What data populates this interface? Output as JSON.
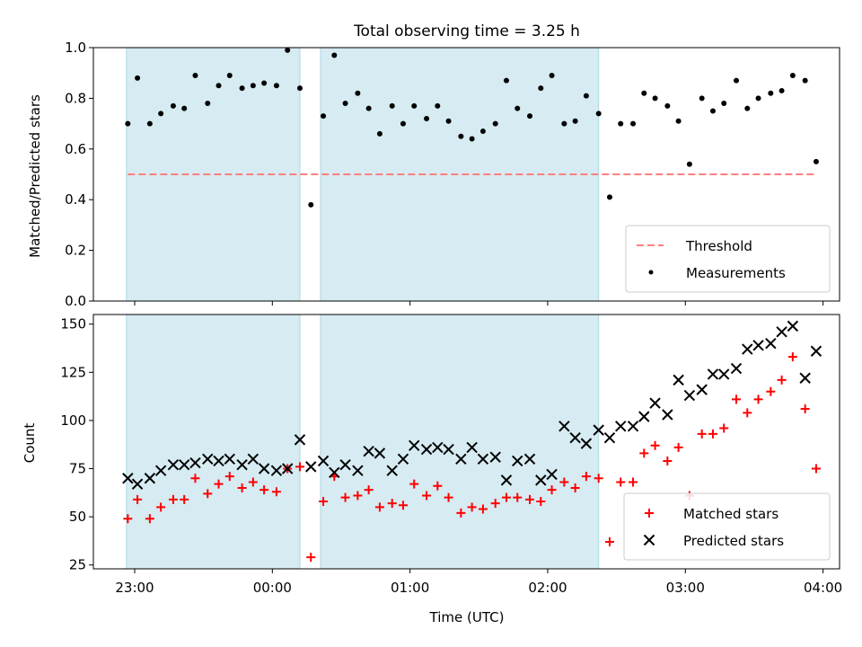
{
  "title": "Total observing time = 3.25 h",
  "xlabel": "Time (UTC)",
  "x_tick_labels": [
    "23:00",
    "00:00",
    "01:00",
    "02:00",
    "03:00",
    "04:00"
  ],
  "colors": {
    "shade": "#add8e6",
    "threshold": "#ff7f7f",
    "measurement": "#000000",
    "matched": "#ff0000",
    "predicted": "#000000"
  },
  "chart_data": [
    {
      "type": "scatter",
      "ylabel": "Matched/Predicted stars",
      "ylim": [
        0,
        1.0
      ],
      "y_ticks": [
        "0.0",
        "0.2",
        "0.4",
        "0.6",
        "0.8",
        "1.0"
      ],
      "x_range_hours": [
        -1.3,
        4.12
      ],
      "x_ticks_hours": [
        -1,
        0,
        1,
        2,
        3,
        4
      ],
      "shaded_intervals": [
        [
          -1.06,
          0.2
        ],
        [
          0.35,
          2.37
        ]
      ],
      "threshold": 0.5,
      "legend": {
        "position": "lower right",
        "entries": [
          "Threshold",
          "Measurements"
        ]
      },
      "series": [
        {
          "name": "Measurements",
          "marker": "dot",
          "x": [
            -1.05,
            -0.98,
            -0.89,
            -0.81,
            -0.72,
            -0.64,
            -0.56,
            -0.47,
            -0.39,
            -0.31,
            -0.22,
            -0.14,
            -0.06,
            0.03,
            0.11,
            0.2,
            0.28,
            0.37,
            0.45,
            0.53,
            0.62,
            0.7,
            0.78,
            0.87,
            0.95,
            1.03,
            1.12,
            1.2,
            1.28,
            1.37,
            1.45,
            1.53,
            1.62,
            1.7,
            1.78,
            1.87,
            1.95,
            2.03,
            2.12,
            2.2,
            2.28,
            2.37,
            2.45,
            2.53,
            2.62,
            2.7,
            2.78,
            2.87,
            2.95,
            3.03,
            3.12,
            3.2,
            3.28,
            3.37,
            3.45,
            3.53,
            3.62,
            3.7,
            3.78,
            3.87,
            3.95
          ],
          "y": [
            0.7,
            0.88,
            0.7,
            0.74,
            0.77,
            0.76,
            0.89,
            0.78,
            0.85,
            0.89,
            0.84,
            0.85,
            0.86,
            0.85,
            0.99,
            0.84,
            0.38,
            0.73,
            0.97,
            0.78,
            0.82,
            0.76,
            0.66,
            0.77,
            0.7,
            0.77,
            0.72,
            0.77,
            0.71,
            0.65,
            0.64,
            0.67,
            0.7,
            0.87,
            0.76,
            0.73,
            0.84,
            0.89,
            0.7,
            0.71,
            0.81,
            0.74,
            0.41,
            0.7,
            0.7,
            0.82,
            0.8,
            0.77,
            0.71,
            0.54,
            0.8,
            0.75,
            0.78,
            0.87,
            0.76,
            0.8,
            0.82,
            0.83,
            0.89,
            0.87,
            0.55
          ]
        }
      ]
    },
    {
      "type": "scatter",
      "ylabel": "Count",
      "ylim": [
        23,
        155
      ],
      "y_ticks": [
        "25",
        "50",
        "75",
        "100",
        "125",
        "150"
      ],
      "x_range_hours": [
        -1.3,
        4.12
      ],
      "x_ticks_hours": [
        -1,
        0,
        1,
        2,
        3,
        4
      ],
      "shaded_intervals": [
        [
          -1.06,
          0.2
        ],
        [
          0.35,
          2.37
        ]
      ],
      "legend": {
        "position": "lower right",
        "entries": [
          "Matched stars",
          "Predicted stars"
        ]
      },
      "series": [
        {
          "name": "Matched stars",
          "marker": "plus",
          "x": [
            -1.05,
            -0.98,
            -0.89,
            -0.81,
            -0.72,
            -0.64,
            -0.56,
            -0.47,
            -0.39,
            -0.31,
            -0.22,
            -0.14,
            -0.06,
            0.03,
            0.11,
            0.2,
            0.28,
            0.37,
            0.45,
            0.53,
            0.62,
            0.7,
            0.78,
            0.87,
            0.95,
            1.03,
            1.12,
            1.2,
            1.28,
            1.37,
            1.45,
            1.53,
            1.62,
            1.7,
            1.78,
            1.87,
            1.95,
            2.03,
            2.12,
            2.2,
            2.28,
            2.37,
            2.45,
            2.53,
            2.62,
            2.7,
            2.78,
            2.87,
            2.95,
            3.03,
            3.12,
            3.2,
            3.28,
            3.37,
            3.45,
            3.53,
            3.62,
            3.7,
            3.78,
            3.87,
            3.95
          ],
          "y": [
            49,
            59,
            49,
            55,
            59,
            59,
            70,
            62,
            67,
            71,
            65,
            68,
            64,
            63,
            75,
            76,
            29,
            58,
            71,
            60,
            61,
            64,
            55,
            57,
            56,
            67,
            61,
            66,
            60,
            52,
            55,
            54,
            57,
            60,
            60,
            59,
            58,
            64,
            68,
            65,
            71,
            70,
            37,
            68,
            68,
            83,
            87,
            79,
            86,
            61,
            93,
            93,
            96,
            111,
            104,
            111,
            115,
            121,
            133,
            106,
            75
          ]
        },
        {
          "name": "Predicted stars",
          "marker": "x",
          "x": [
            -1.05,
            -0.98,
            -0.89,
            -0.81,
            -0.72,
            -0.64,
            -0.56,
            -0.47,
            -0.39,
            -0.31,
            -0.22,
            -0.14,
            -0.06,
            0.03,
            0.11,
            0.2,
            0.28,
            0.37,
            0.45,
            0.53,
            0.62,
            0.7,
            0.78,
            0.87,
            0.95,
            1.03,
            1.12,
            1.2,
            1.28,
            1.37,
            1.45,
            1.53,
            1.62,
            1.7,
            1.78,
            1.87,
            1.95,
            2.03,
            2.12,
            2.2,
            2.28,
            2.37,
            2.45,
            2.53,
            2.62,
            2.7,
            2.78,
            2.87,
            2.95,
            3.03,
            3.12,
            3.2,
            3.28,
            3.37,
            3.45,
            3.53,
            3.62,
            3.7,
            3.78,
            3.87,
            3.95
          ],
          "y": [
            70,
            67,
            70,
            74,
            77,
            77,
            78,
            80,
            79,
            80,
            77,
            80,
            75,
            74,
            75,
            90,
            76,
            79,
            73,
            77,
            74,
            84,
            83,
            74,
            80,
            87,
            85,
            86,
            85,
            80,
            86,
            80,
            81,
            69,
            79,
            80,
            69,
            72,
            97,
            91,
            88,
            95,
            91,
            97,
            97,
            102,
            109,
            103,
            121,
            113,
            116,
            124,
            124,
            127,
            137,
            139,
            140,
            146,
            149,
            122,
            136
          ]
        }
      ]
    }
  ]
}
